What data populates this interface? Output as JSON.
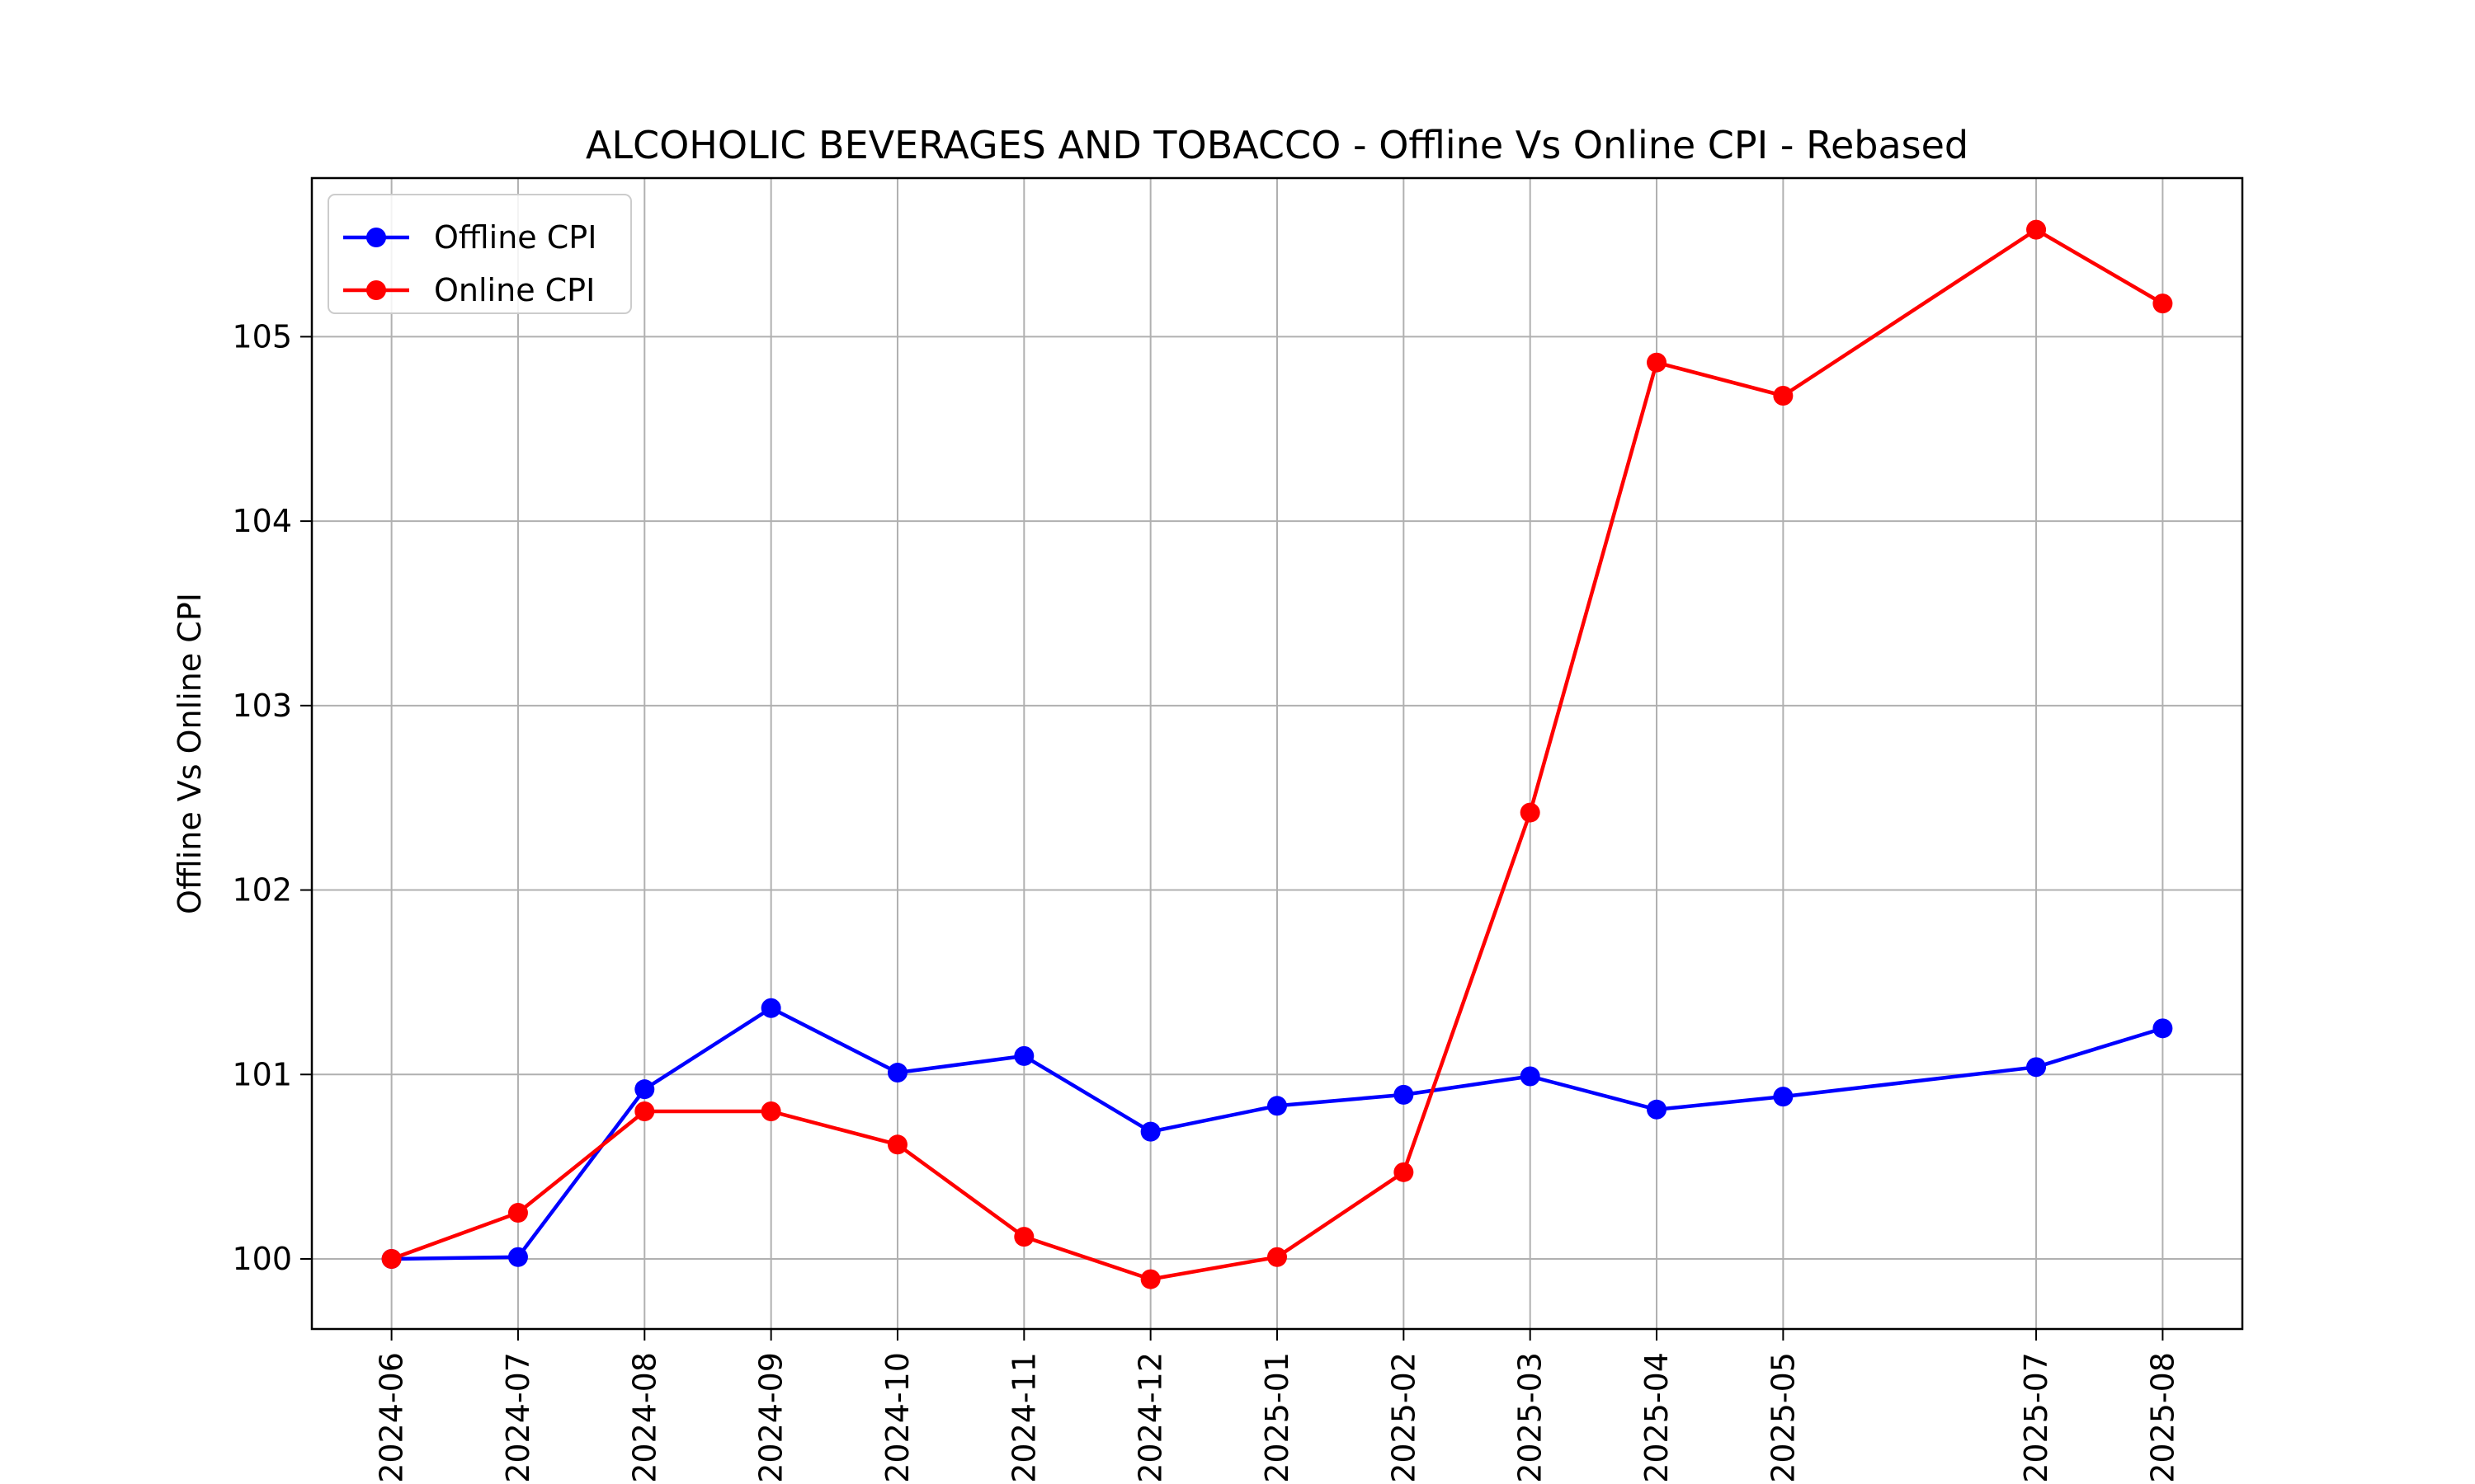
{
  "chart_data": {
    "type": "line",
    "title": "ALCOHOLIC BEVERAGES AND TOBACCO - Offline Vs Online CPI - Rebased",
    "xlabel": "",
    "ylabel": "Offline Vs Online CPI",
    "x": [
      "2024-06",
      "2024-07",
      "2024-08",
      "2024-09",
      "2024-10",
      "2024-11",
      "2024-12",
      "2025-01",
      "2025-02",
      "2025-03",
      "2025-04",
      "2025-05",
      "2025-07",
      "2025-08"
    ],
    "x_tick_labels": [
      "2024-06",
      "2024-07",
      "2024-08",
      "2024-09",
      "2024-10",
      "2024-11",
      "2024-12",
      "2025-01",
      "2025-02",
      "2025-03",
      "2025-04",
      "2025-05",
      "2025-07",
      "2025-08"
    ],
    "ylim": [
      99.62,
      105.86
    ],
    "y_ticks": [
      100,
      101,
      102,
      103,
      104,
      105
    ],
    "grid": true,
    "legend_position": "top-left",
    "series": [
      {
        "name": "Offline CPI",
        "color": "#0000ff",
        "marker": "circle",
        "values": [
          100.0,
          100.01,
          100.92,
          101.36,
          101.01,
          101.1,
          100.69,
          100.83,
          100.89,
          100.99,
          100.81,
          100.88,
          101.04,
          101.25
        ]
      },
      {
        "name": "Online CPI",
        "color": "#ff0000",
        "marker": "circle",
        "values": [
          100.0,
          100.25,
          100.8,
          100.8,
          100.62,
          100.12,
          99.89,
          100.01,
          100.47,
          102.42,
          104.86,
          104.68,
          105.58,
          105.18
        ]
      }
    ]
  }
}
